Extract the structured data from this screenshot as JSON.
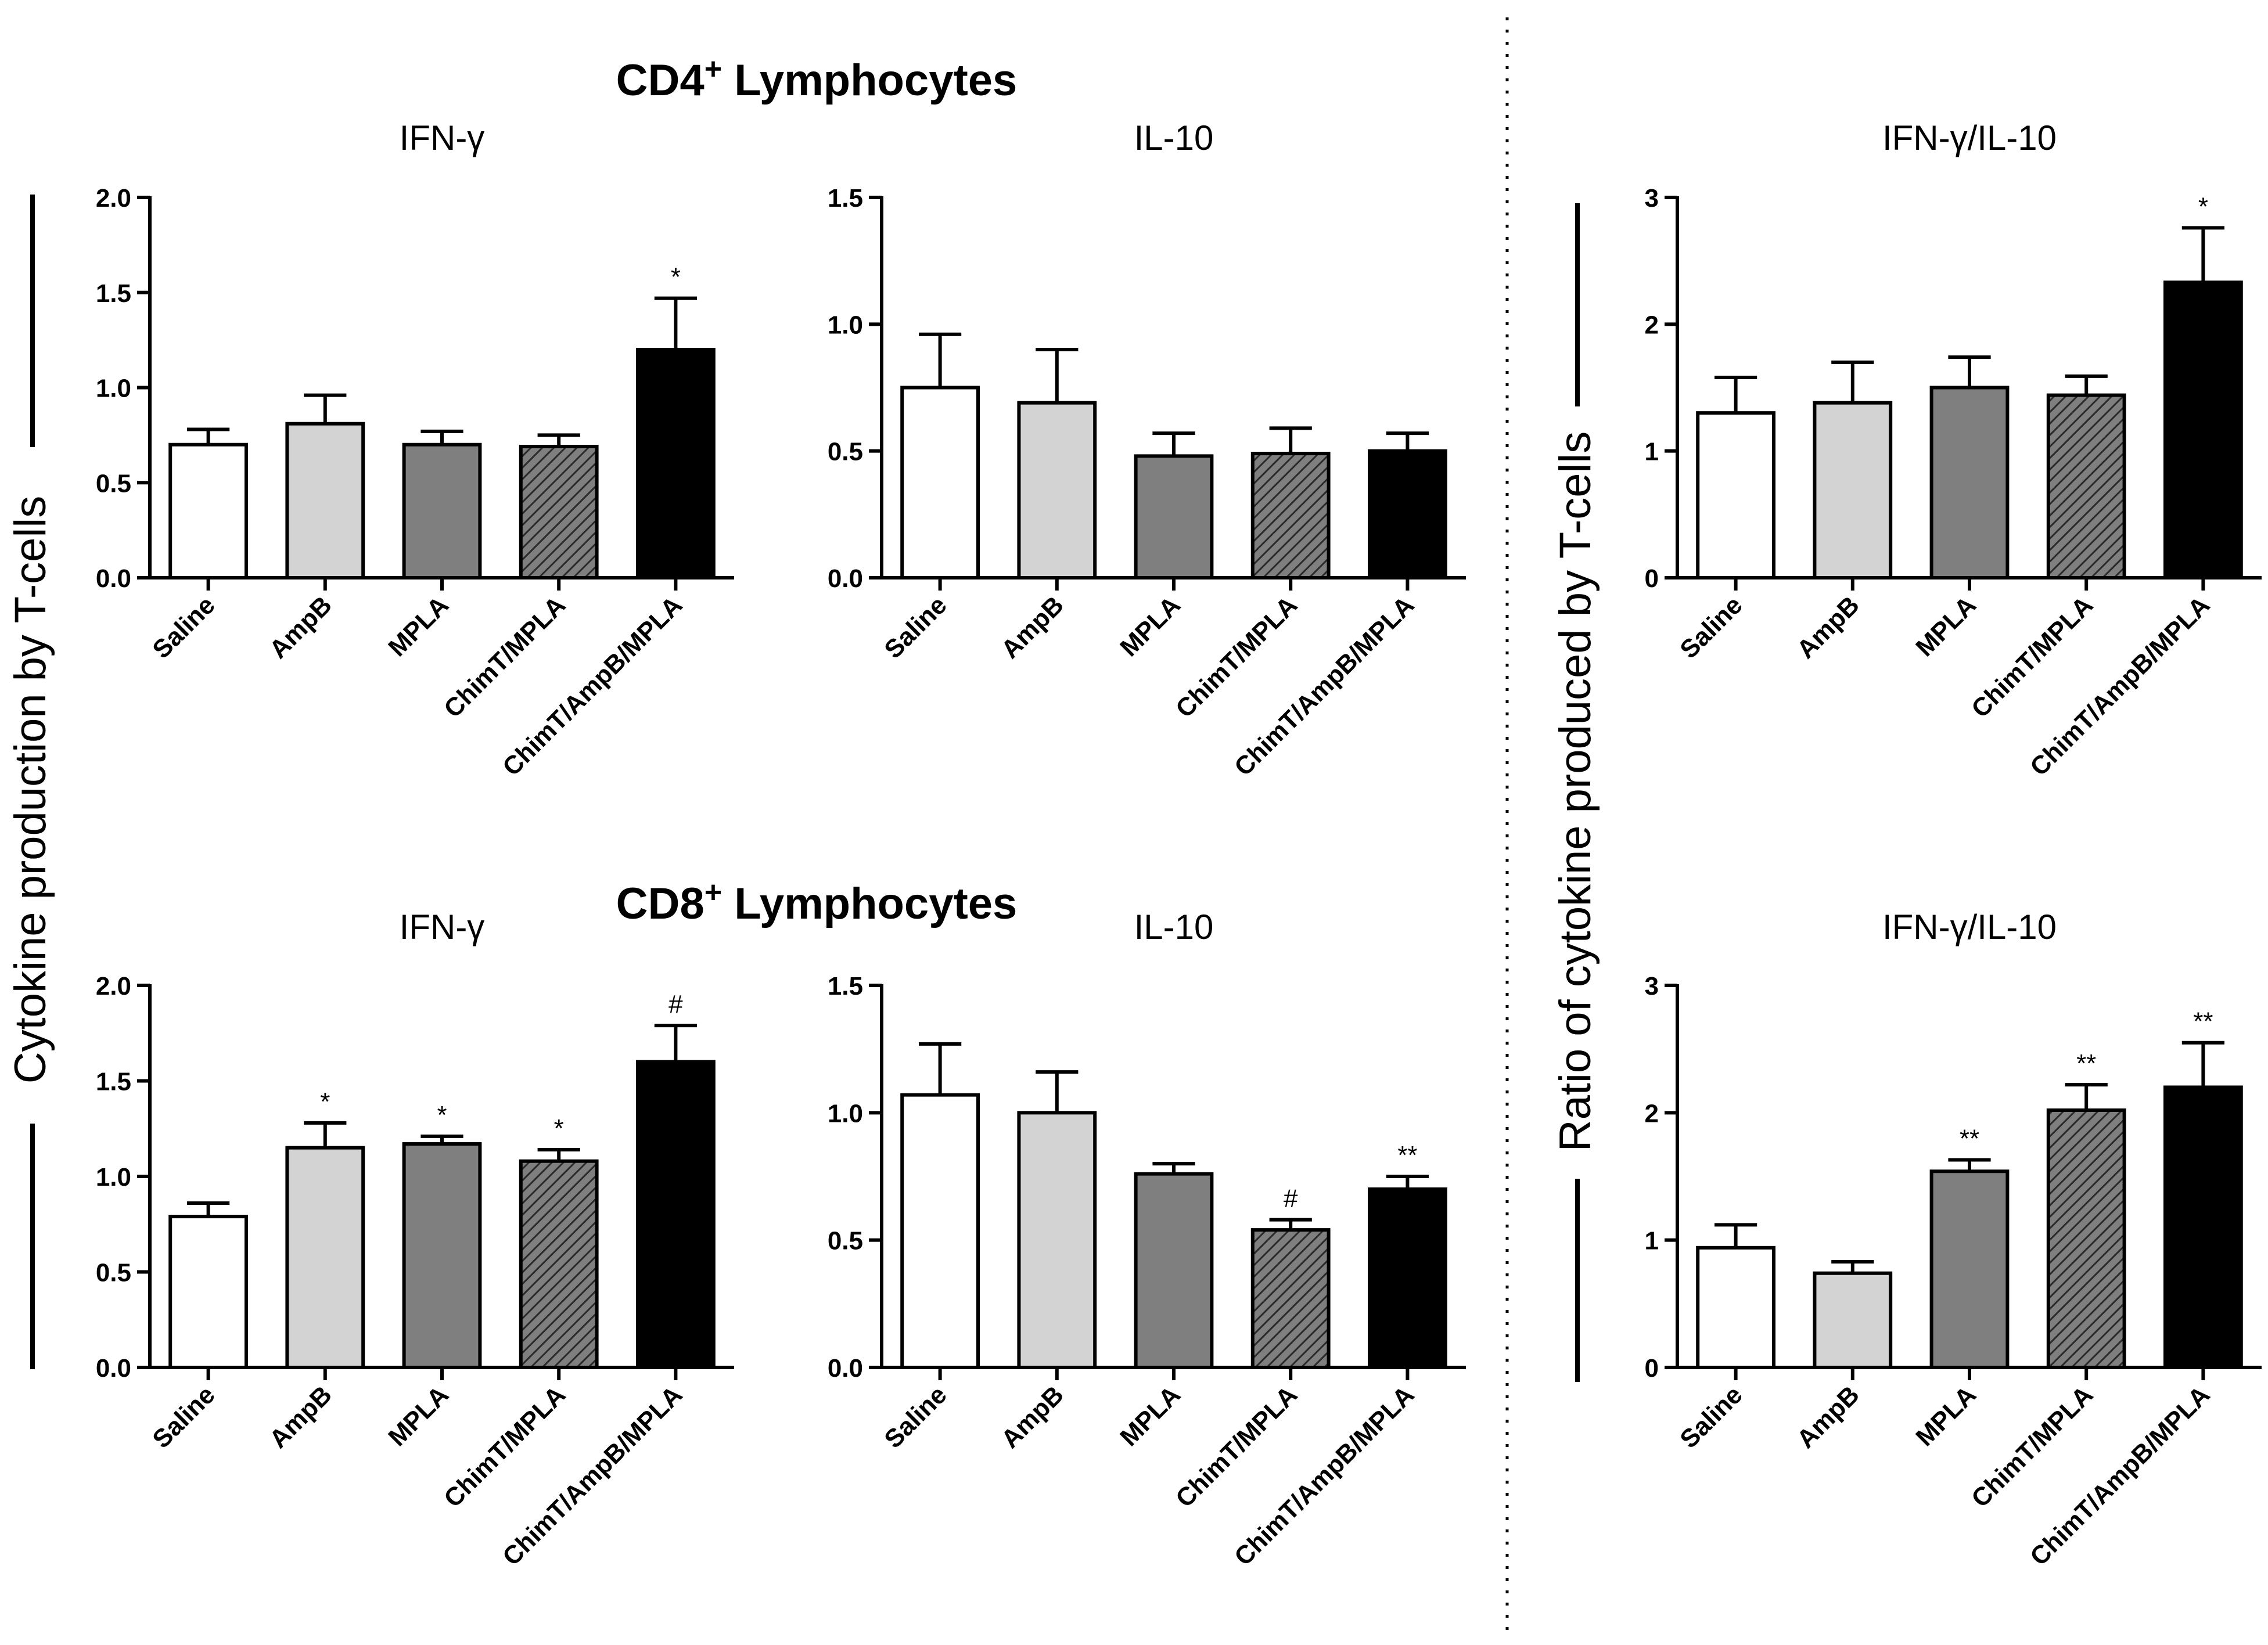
{
  "figure": {
    "section_titles": {
      "cd4_prefix": "CD4",
      "cd4_sup": "+",
      "cd4_suffix": " Lymphocytes",
      "cd8_prefix": "CD8",
      "cd8_sup": "+",
      "cd8_suffix": " Lymphocytes"
    },
    "left_ylabel": "Cytokine production by T-cells",
    "right_ylabel": "Ratio of cytokine produced by T-cells",
    "colors": {
      "Saline": "#ffffff",
      "AmpB": "#d3d3d3",
      "MPLA": "#7f7f7f",
      "ChimT/MPLA": "#7f7f7f",
      "ChimT/AmpB/MPLA": "#000000",
      "hatch": "#2a2a2a"
    }
  },
  "chart_data": [
    {
      "id": "cd4-ifng",
      "type": "bar",
      "title": "IFN-γ",
      "categories": [
        "Saline",
        "AmpB",
        "MPLA",
        "ChimT/MPLA",
        "ChimT/AmpB/MPLA"
      ],
      "values": [
        0.7,
        0.81,
        0.7,
        0.69,
        1.2
      ],
      "errors": [
        0.08,
        0.15,
        0.07,
        0.06,
        0.27
      ],
      "annotations": [
        "",
        "",
        "",
        "",
        "*"
      ],
      "ylim": [
        0,
        2.0
      ],
      "yticks": [
        0.0,
        0.5,
        1.0,
        1.5,
        2.0
      ],
      "ytick_labels": [
        "0.0",
        "0.5",
        "1.0",
        "1.5",
        "2.0"
      ]
    },
    {
      "id": "cd4-il10",
      "type": "bar",
      "title": "IL-10",
      "categories": [
        "Saline",
        "AmpB",
        "MPLA",
        "ChimT/MPLA",
        "ChimT/AmpB/MPLA"
      ],
      "values": [
        0.75,
        0.69,
        0.48,
        0.49,
        0.5
      ],
      "errors": [
        0.21,
        0.21,
        0.09,
        0.1,
        0.07
      ],
      "annotations": [
        "",
        "",
        "",
        "",
        ""
      ],
      "ylim": [
        0,
        1.5
      ],
      "yticks": [
        0.0,
        0.5,
        1.0,
        1.5
      ],
      "ytick_labels": [
        "0.0",
        "0.5",
        "1.0",
        "1.5"
      ]
    },
    {
      "id": "cd4-ratio",
      "type": "bar",
      "title": "IFN-γ/IL-10",
      "categories": [
        "Saline",
        "AmpB",
        "MPLA",
        "ChimT/MPLA",
        "ChimT/AmpB/MPLA"
      ],
      "values": [
        1.3,
        1.38,
        1.5,
        1.44,
        2.33
      ],
      "errors": [
        0.28,
        0.32,
        0.24,
        0.15,
        0.43
      ],
      "annotations": [
        "",
        "",
        "",
        "",
        "*"
      ],
      "ylim": [
        0,
        3
      ],
      "yticks": [
        0,
        1,
        2,
        3
      ],
      "ytick_labels": [
        "0",
        "1",
        "2",
        "3"
      ]
    },
    {
      "id": "cd8-ifng",
      "type": "bar",
      "title": "IFN-γ",
      "categories": [
        "Saline",
        "AmpB",
        "MPLA",
        "ChimT/MPLA",
        "ChimT/AmpB/MPLA"
      ],
      "values": [
        0.79,
        1.15,
        1.17,
        1.08,
        1.6
      ],
      "errors": [
        0.07,
        0.13,
        0.04,
        0.06,
        0.19
      ],
      "annotations": [
        "",
        "*",
        "*",
        "*",
        "#"
      ],
      "ylim": [
        0,
        2.0
      ],
      "yticks": [
        0.0,
        0.5,
        1.0,
        1.5,
        2.0
      ],
      "ytick_labels": [
        "0.0",
        "0.5",
        "1.0",
        "1.5",
        "2.0"
      ]
    },
    {
      "id": "cd8-il10",
      "type": "bar",
      "title": "IL-10",
      "categories": [
        "Saline",
        "AmpB",
        "MPLA",
        "ChimT/MPLA",
        "ChimT/AmpB/MPLA"
      ],
      "values": [
        1.07,
        1.0,
        0.76,
        0.54,
        0.7
      ],
      "errors": [
        0.2,
        0.16,
        0.04,
        0.04,
        0.05
      ],
      "annotations": [
        "",
        "",
        "",
        "#",
        "**"
      ],
      "ylim": [
        0,
        1.5
      ],
      "yticks": [
        0.0,
        0.5,
        1.0,
        1.5
      ],
      "ytick_labels": [
        "0.0",
        "0.5",
        "1.0",
        "1.5"
      ]
    },
    {
      "id": "cd8-ratio",
      "type": "bar",
      "title": "IFN-γ/IL-10",
      "categories": [
        "Saline",
        "AmpB",
        "MPLA",
        "ChimT/MPLA",
        "ChimT/AmpB/MPLA"
      ],
      "values": [
        0.94,
        0.74,
        1.54,
        2.02,
        2.2
      ],
      "errors": [
        0.18,
        0.09,
        0.09,
        0.2,
        0.35
      ],
      "annotations": [
        "",
        "",
        "**",
        "**",
        "**"
      ],
      "ylim": [
        0,
        3
      ],
      "yticks": [
        0,
        1,
        2,
        3
      ],
      "ytick_labels": [
        "0",
        "1",
        "2",
        "3"
      ]
    }
  ]
}
